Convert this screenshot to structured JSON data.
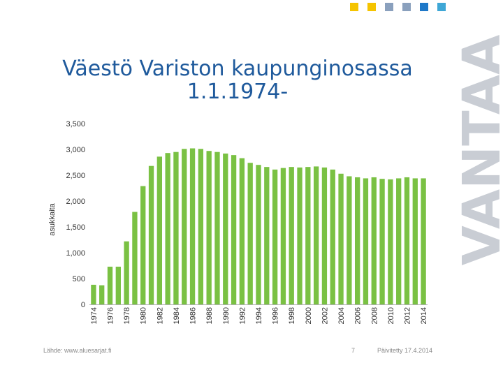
{
  "brand": {
    "name": "VANTAA",
    "square_colors": [
      "#f5c400",
      "#f5c400",
      "#8aa0bd",
      "#8aa0bd",
      "#1e78c8",
      "#3fa7d6"
    ]
  },
  "title": {
    "line1": "Väestö Variston kaupunginosassa",
    "line2": "1.1.1974-"
  },
  "footer": {
    "source": "Lähde: www.aluesarjat.fi",
    "page": "7",
    "updated": "Päivitetty 17.4.2014"
  },
  "chart_data": {
    "type": "bar",
    "ylabel": "asukkaita",
    "ylim": [
      0,
      3500
    ],
    "yticks": [
      0,
      500,
      1000,
      1500,
      2000,
      2500,
      3000,
      3500
    ],
    "ytick_labels": [
      "0",
      "500",
      "1,000",
      "1,500",
      "2,000",
      "2,500",
      "3,000",
      "3,500"
    ],
    "bar_color": "#7ac143",
    "grid": false,
    "categories": [
      "1974",
      "1975",
      "1976",
      "1977",
      "1978",
      "1979",
      "1980",
      "1981",
      "1982",
      "1983",
      "1984",
      "1985",
      "1986",
      "1987",
      "1988",
      "1989",
      "1990",
      "1991",
      "1992",
      "1993",
      "1994",
      "1995",
      "1996",
      "1997",
      "1998",
      "1999",
      "2000",
      "2001",
      "2002",
      "2003",
      "2004",
      "2005",
      "2006",
      "2007",
      "2008",
      "2009",
      "2010",
      "2011",
      "2012",
      "2013",
      "2014"
    ],
    "xtick_labels": [
      "1974",
      "",
      "1976",
      "",
      "1978",
      "",
      "1980",
      "",
      "1982",
      "",
      "1984",
      "",
      "1986",
      "",
      "1988",
      "",
      "1990",
      "",
      "1992",
      "",
      "1994",
      "",
      "1996",
      "",
      "1998",
      "",
      "2000",
      "",
      "2002",
      "",
      "2004",
      "",
      "2006",
      "",
      "2008",
      "",
      "2010",
      "",
      "2012",
      "",
      "2014"
    ],
    "values": [
      380,
      370,
      730,
      730,
      1220,
      1790,
      2290,
      2680,
      2860,
      2930,
      2950,
      3010,
      3020,
      3010,
      2970,
      2950,
      2920,
      2890,
      2830,
      2740,
      2700,
      2660,
      2610,
      2640,
      2660,
      2650,
      2660,
      2670,
      2650,
      2610,
      2530,
      2480,
      2460,
      2440,
      2460,
      2430,
      2420,
      2440,
      2460,
      2440,
      2440
    ]
  }
}
